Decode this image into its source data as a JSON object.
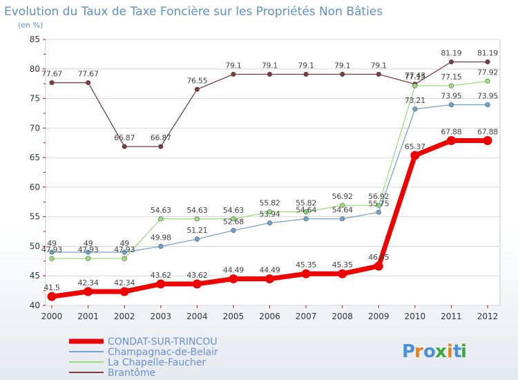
{
  "chart_data": {
    "type": "line",
    "title": "Evolution du Taux de Taxe Foncière sur les Propriétés Non Bâties",
    "subtitle": "(en %)",
    "xlabel": "",
    "ylabel": "",
    "ylim": [
      40,
      85
    ],
    "yticks": [
      40,
      45,
      50,
      55,
      60,
      65,
      70,
      75,
      80,
      85
    ],
    "x": [
      "2000",
      "2001",
      "2002",
      "2003",
      "2004",
      "2005",
      "2006",
      "2007",
      "2008",
      "2009",
      "2010",
      "2011",
      "2012"
    ],
    "grid": "horizontal",
    "legend_position": "bottom-left",
    "series": [
      {
        "name": "CONDAT-SUR-TRINCOU",
        "color": "#ee0000",
        "values": [
          41.5,
          42.34,
          42.34,
          43.62,
          43.62,
          44.49,
          44.49,
          45.35,
          45.35,
          46.65,
          65.37,
          67.88,
          67.88
        ],
        "labels": [
          "41.5",
          "42.34",
          "42.34",
          "43.62",
          "43.62",
          "44.49",
          "44.49",
          "45.35",
          "45.35",
          "46.65",
          "65.37",
          "67.88",
          "67.88"
        ]
      },
      {
        "name": "Champagnac-de-Belair",
        "color": "#6fa3d0",
        "values": [
          49,
          49,
          49,
          49.98,
          51.21,
          52.68,
          53.94,
          54.64,
          54.64,
          55.75,
          73.21,
          73.95,
          73.95
        ],
        "labels": [
          "49",
          "49",
          "49",
          "49.98",
          "51.21",
          "52.68",
          "53.94",
          "54.64",
          "54.64",
          "55.75",
          "73.21",
          "73.95",
          "73.95"
        ]
      },
      {
        "name": "La Chapelle-Faucher",
        "color": "#99e07a",
        "values": [
          47.93,
          47.93,
          47.93,
          54.63,
          54.63,
          54.63,
          55.82,
          55.82,
          56.92,
          56.92,
          77.15,
          77.15,
          77.92
        ],
        "labels": [
          "47.93",
          "47.93",
          "47.93",
          "54.63",
          "54.63",
          "54.63",
          "55.82",
          "55.82",
          "56.92",
          "56.92",
          "77.15",
          "77.15",
          "77.92"
        ]
      },
      {
        "name": "Brantôme",
        "color": "#7a3d3d",
        "values": [
          77.67,
          77.67,
          66.87,
          66.87,
          76.55,
          79.1,
          79.1,
          79.1,
          79.1,
          79.1,
          77.43,
          81.19,
          81.19
        ],
        "labels": [
          "77.67",
          "77.67",
          "66.87",
          "66.87",
          "76.55",
          "79.1",
          "79.1",
          "79.1",
          "79.1",
          "79.1",
          "77.43",
          "81.19",
          "81.19"
        ]
      }
    ]
  },
  "logo": {
    "letters": [
      "P",
      "r",
      "o",
      "x",
      "i",
      "t",
      "i"
    ],
    "colors": [
      "#4a90d9",
      "#e8801a",
      "#4a90d9",
      "#3aa83a",
      "#e8801a",
      "#4a90d9",
      "#3aa83a"
    ]
  }
}
